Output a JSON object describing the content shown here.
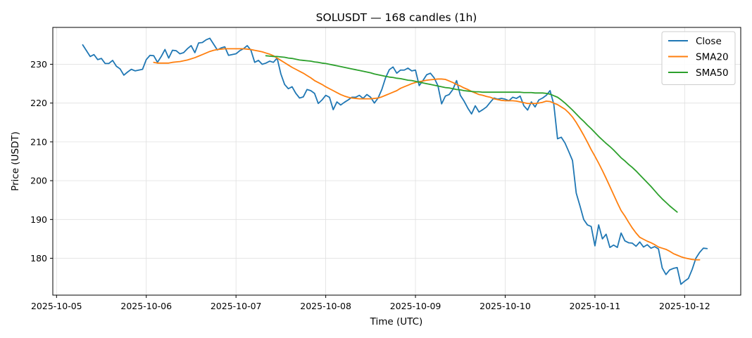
{
  "chart_data": {
    "type": "line",
    "title": "SOLUSDT — 168 candles (1h)",
    "xlabel": "Time (UTC)",
    "ylabel": "Price (USDT)",
    "x_start": "2025-10-05T07:00",
    "x_step_hours": 1,
    "xlim": [
      "2025-10-04T23:00",
      "2025-10-12T15:00"
    ],
    "ylim": [
      170.5,
      239.5
    ],
    "x_ticks": [
      "2025-10-05",
      "2025-10-06",
      "2025-10-07",
      "2025-10-08",
      "2025-10-09",
      "2025-10-10",
      "2025-10-11",
      "2025-10-12"
    ],
    "y_ticks": [
      180,
      190,
      200,
      210,
      220,
      230
    ],
    "grid": true,
    "legend_position": "top-right",
    "series": [
      {
        "name": "Close",
        "color": "#1f77b4",
        "values": [
          235.0,
          233.5,
          232.0,
          232.5,
          231.2,
          231.5,
          230.2,
          230.2,
          231.0,
          229.5,
          228.8,
          227.2,
          228.0,
          228.7,
          228.3,
          228.5,
          228.7,
          231.2,
          232.3,
          232.2,
          230.5,
          232.0,
          233.8,
          231.6,
          233.6,
          233.5,
          232.7,
          233.0,
          234.0,
          234.8,
          233.0,
          235.5,
          235.6,
          236.3,
          236.7,
          235.2,
          233.7,
          234.2,
          234.5,
          232.3,
          232.5,
          232.7,
          233.5,
          234.0,
          234.8,
          233.6,
          230.5,
          231.0,
          230.0,
          230.3,
          230.8,
          230.5,
          231.6,
          227.5,
          224.8,
          223.7,
          224.2,
          222.5,
          221.3,
          221.6,
          223.5,
          223.2,
          222.5,
          219.9,
          220.8,
          222.0,
          221.5,
          218.3,
          220.3,
          219.5,
          220.2,
          220.8,
          221.5,
          221.5,
          222.0,
          221.2,
          222.2,
          221.5,
          220.0,
          221.3,
          223.5,
          226.5,
          228.6,
          229.3,
          227.7,
          228.5,
          228.5,
          229.0,
          228.3,
          228.5,
          224.5,
          225.8,
          227.3,
          227.7,
          226.5,
          224.5,
          219.8,
          221.8,
          222.2,
          223.5,
          225.8,
          222.0,
          220.5,
          218.7,
          217.2,
          219.3,
          217.7,
          218.3,
          219.0,
          220.2,
          221.3,
          221.0,
          221.2,
          221.0,
          220.6,
          221.5,
          221.2,
          221.8,
          219.3,
          218.2,
          220.3,
          219.0,
          220.8,
          221.3,
          222.0,
          223.2,
          219.7,
          210.8,
          211.2,
          209.7,
          207.5,
          205.2,
          196.8,
          193.5,
          190.0,
          188.6,
          188.2,
          183.2,
          188.6,
          185.0,
          186.2,
          182.8,
          183.4,
          182.8,
          186.5,
          184.5,
          184.0,
          183.9,
          183.1,
          184.2,
          182.9,
          183.5,
          182.6,
          183.0,
          182.4,
          177.5,
          175.8,
          177.0,
          177.4,
          177.6,
          173.3,
          174.1,
          174.8,
          177.1,
          180.0,
          181.5,
          182.6,
          182.5
        ]
      },
      {
        "name": "SMA20",
        "color": "#ff7f0e",
        "values": [
          null,
          null,
          null,
          null,
          null,
          null,
          null,
          null,
          null,
          null,
          null,
          null,
          null,
          null,
          null,
          null,
          null,
          null,
          null,
          230.5,
          230.3,
          230.3,
          230.3,
          230.3,
          230.5,
          230.6,
          230.7,
          230.9,
          231.1,
          231.4,
          231.7,
          232.1,
          232.5,
          232.9,
          233.3,
          233.6,
          233.8,
          233.9,
          234.0,
          234.0,
          234.0,
          234.0,
          234.0,
          234.0,
          233.9,
          233.8,
          233.6,
          233.4,
          233.2,
          232.9,
          232.6,
          232.2,
          231.6,
          231.0,
          230.4,
          229.8,
          229.2,
          228.7,
          228.2,
          227.7,
          227.1,
          226.5,
          225.8,
          225.3,
          224.8,
          224.2,
          223.7,
          223.2,
          222.7,
          222.2,
          221.8,
          221.5,
          221.3,
          221.2,
          221.1,
          221.1,
          221.1,
          221.1,
          221.2,
          221.3,
          221.6,
          222.0,
          222.4,
          222.8,
          223.2,
          223.8,
          224.2,
          224.6,
          225.0,
          225.3,
          225.5,
          225.7,
          225.9,
          226.0,
          226.1,
          226.2,
          226.2,
          226.1,
          225.7,
          225.3,
          224.8,
          224.4,
          223.9,
          223.5,
          223.0,
          222.6,
          222.2,
          222.0,
          221.7,
          221.5,
          221.1,
          220.9,
          220.7,
          220.6,
          220.6,
          220.6,
          220.5,
          220.3,
          220.1,
          219.9,
          219.9,
          219.9,
          220.0,
          220.2,
          220.5,
          220.4,
          220.0,
          219.6,
          219.0,
          218.4,
          217.5,
          216.4,
          215.0,
          213.4,
          211.7,
          209.9,
          208.0,
          206.3,
          204.5,
          202.6,
          200.6,
          198.5,
          196.4,
          194.3,
          192.3,
          190.9,
          189.3,
          187.8,
          186.5,
          185.4,
          184.9,
          184.4,
          184.0,
          183.5,
          182.9,
          182.6,
          182.3,
          181.8,
          181.2,
          180.8,
          180.4,
          180.1,
          179.9,
          179.7,
          179.6,
          179.6
        ]
      },
      {
        "name": "SMA50",
        "color": "#2ca02c",
        "values": [
          null,
          null,
          null,
          null,
          null,
          null,
          null,
          null,
          null,
          null,
          null,
          null,
          null,
          null,
          null,
          null,
          null,
          null,
          null,
          null,
          null,
          null,
          null,
          null,
          null,
          null,
          null,
          null,
          null,
          null,
          null,
          null,
          null,
          null,
          null,
          null,
          null,
          null,
          null,
          null,
          null,
          null,
          null,
          null,
          null,
          null,
          null,
          null,
          null,
          232.2,
          232.1,
          232.0,
          232.0,
          231.9,
          231.8,
          231.6,
          231.5,
          231.3,
          231.1,
          231.0,
          230.9,
          230.8,
          230.6,
          230.5,
          230.3,
          230.2,
          230.0,
          229.8,
          229.6,
          229.4,
          229.2,
          229.0,
          228.8,
          228.6,
          228.4,
          228.2,
          228.0,
          227.8,
          227.5,
          227.3,
          227.1,
          226.9,
          226.7,
          226.6,
          226.4,
          226.3,
          226.1,
          225.9,
          225.8,
          225.6,
          225.4,
          225.2,
          225.0,
          224.8,
          224.6,
          224.4,
          224.2,
          224.0,
          223.9,
          223.7,
          223.5,
          223.4,
          223.2,
          223.1,
          223.0,
          222.9,
          222.9,
          222.8,
          222.8,
          222.8,
          222.8,
          222.8,
          222.8,
          222.8,
          222.8,
          222.8,
          222.8,
          222.8,
          222.7,
          222.7,
          222.7,
          222.6,
          222.6,
          222.6,
          222.5,
          222.3,
          221.9,
          221.5,
          220.8,
          220.0,
          219.1,
          218.2,
          217.2,
          216.2,
          215.3,
          214.3,
          213.4,
          212.4,
          211.4,
          210.5,
          209.6,
          208.8,
          207.9,
          206.9,
          205.9,
          205.1,
          204.2,
          203.4,
          202.5,
          201.5,
          200.5,
          199.5,
          198.5,
          197.4,
          196.3,
          195.3,
          194.4,
          193.5,
          192.7,
          191.9
        ]
      }
    ]
  }
}
